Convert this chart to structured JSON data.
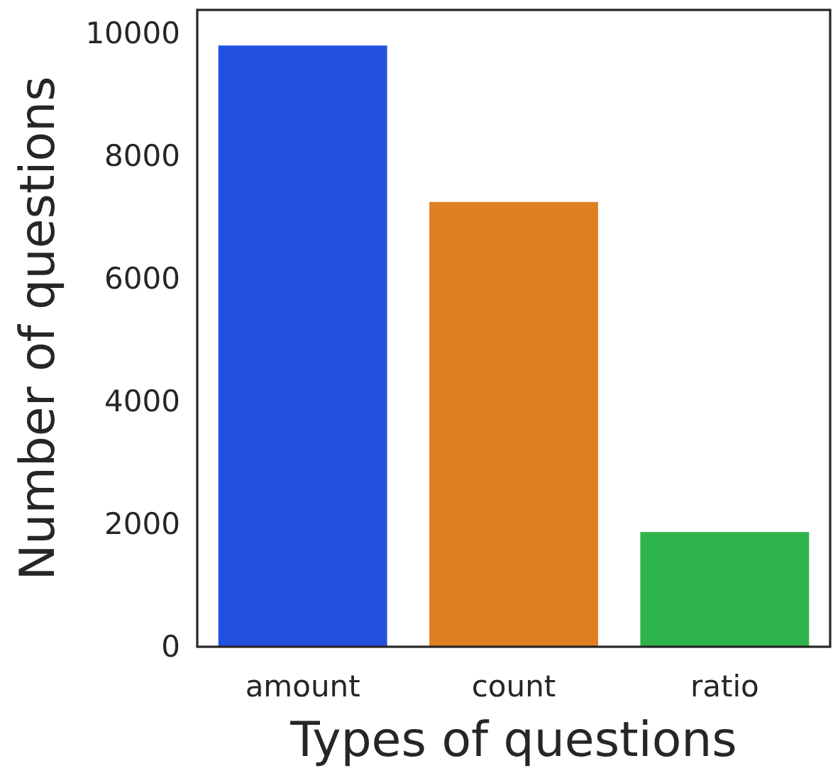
{
  "chart_data": {
    "type": "bar",
    "xlabel": "Types of questions",
    "ylabel": "Number of questions",
    "categories": [
      "amount",
      "count",
      "ratio"
    ],
    "values": [
      9800,
      7250,
      1870
    ],
    "colors": [
      "#2251e0",
      "#e07f22",
      "#2eb34a"
    ],
    "ylim": [
      0,
      10380
    ],
    "yticks": [
      0,
      2000,
      4000,
      6000,
      8000,
      10000
    ],
    "grid": false
  }
}
